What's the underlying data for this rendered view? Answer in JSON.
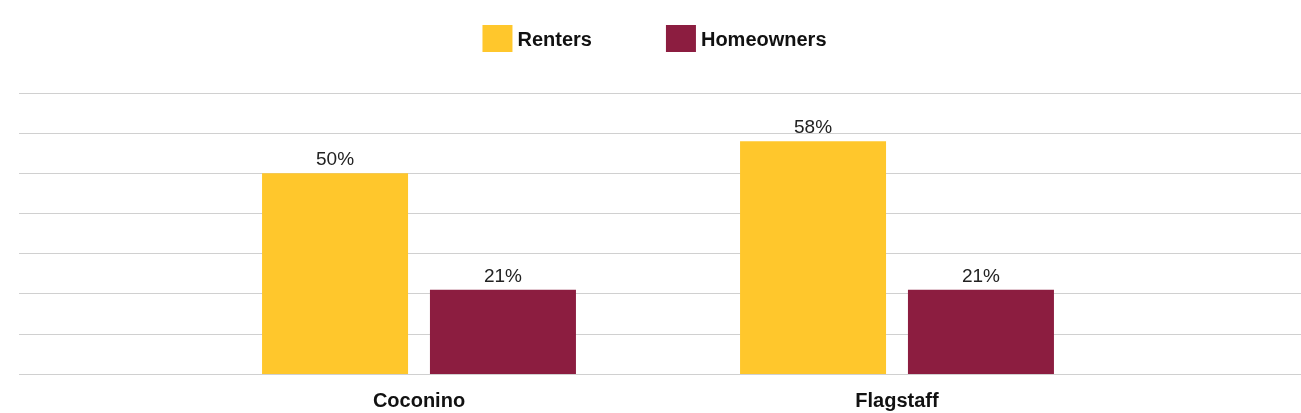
{
  "chart_data": {
    "type": "bar",
    "categories": [
      "Coconino",
      "Flagstaff"
    ],
    "series": [
      {
        "name": "Renters",
        "color": "#ffc72c",
        "values": [
          50,
          58
        ],
        "value_labels": [
          "50%",
          "58%"
        ]
      },
      {
        "name": "Homeowners",
        "color": "#8c1d40",
        "values": [
          21,
          21
        ],
        "value_labels": [
          "21%",
          "21%"
        ]
      }
    ],
    "ylim": [
      0,
      70
    ],
    "yticks": [
      {
        "value": 0,
        "label": null
      },
      {
        "value": 10,
        "label": null
      },
      {
        "value": 20,
        "label": null
      },
      {
        "value": 30,
        "label": null
      },
      {
        "value": 40,
        "label": null
      },
      {
        "value": 50,
        "label": null
      },
      {
        "value": 60,
        "label": null
      },
      {
        "value": 70,
        "label": null
      }
    ],
    "grid": "y",
    "legend": "top"
  }
}
